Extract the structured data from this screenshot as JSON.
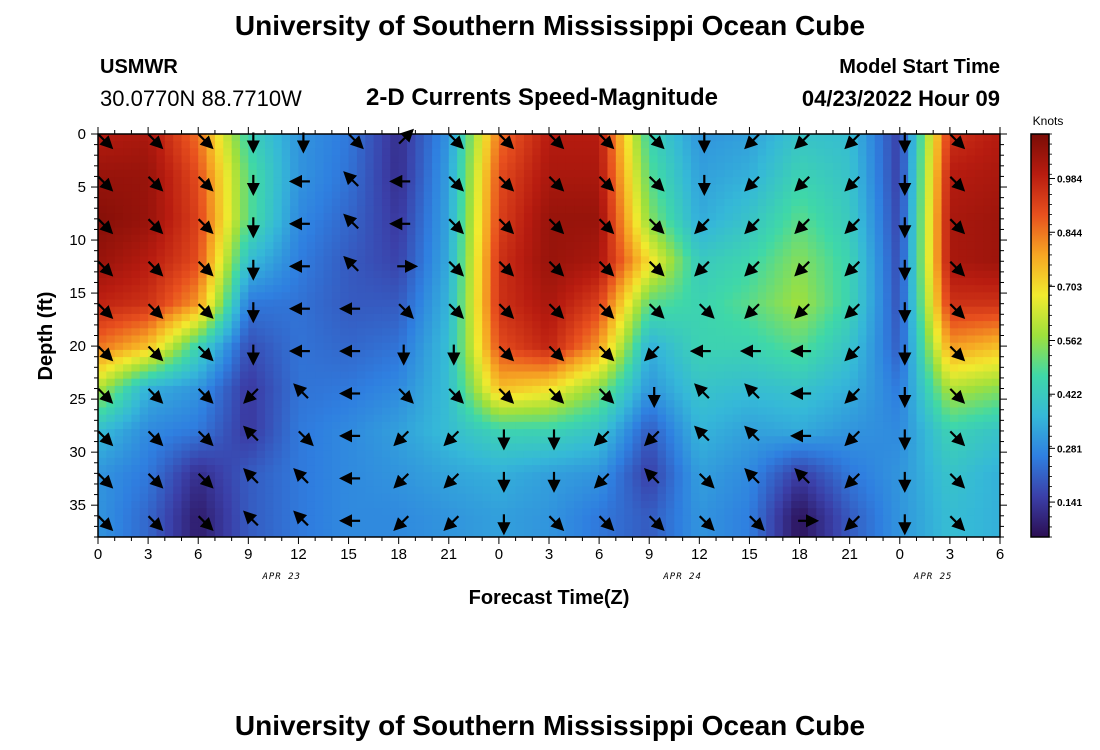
{
  "header": {
    "title": "University of Southern Mississippi Ocean Cube",
    "station": "USMWR",
    "coordinates": "30.0770N  88.7710W",
    "subtitle": "2-D Currents Speed-Magnitude",
    "model_start_label": "Model Start Time",
    "model_start_value": "04/23/2022 Hour 09"
  },
  "footer": {
    "title": "University of Southern Mississippi Ocean Cube"
  },
  "colors": {
    "colormap": [
      "#2b0e52",
      "#3b3fa8",
      "#2f7fe0",
      "#35b8d8",
      "#3fd8a8",
      "#9ee03c",
      "#f2ea2e",
      "#f6a623",
      "#e8501e",
      "#b81c10",
      "#7a0c06"
    ]
  },
  "chart_data": {
    "type": "heatmap",
    "title": "2-D Currents Speed-Magnitude",
    "xlabel": "Forecast Time(Z)",
    "ylabel": "Depth (ft)",
    "x_ticks": [
      "0",
      "3",
      "6",
      "9",
      "12",
      "15",
      "18",
      "21",
      "0",
      "3",
      "6",
      "9",
      "12",
      "15",
      "18",
      "21",
      "0",
      "3",
      "6"
    ],
    "date_labels": [
      {
        "text": "APR 23",
        "hour": 11
      },
      {
        "text": "APR 24",
        "hour": 35
      },
      {
        "text": "APR 25",
        "hour": 50
      }
    ],
    "y_ticks": [
      0,
      5,
      10,
      15,
      20,
      25,
      30,
      35
    ],
    "xlim": [
      0,
      54
    ],
    "ylim": [
      0,
      38
    ],
    "colorbar": {
      "label": "Knots",
      "ticks": [
        "0.984",
        "0.844",
        "0.703",
        "0.562",
        "0.422",
        "0.281",
        "0.141"
      ],
      "tick_values": [
        0.984,
        0.844,
        0.703,
        0.562,
        0.422,
        0.281,
        0.141
      ],
      "range": [
        0.05,
        1.1
      ]
    },
    "speed_grid": {
      "x_hours": [
        0,
        3,
        6,
        9,
        12,
        15,
        18,
        21,
        24,
        27,
        30,
        33,
        36,
        39,
        42,
        45,
        48,
        51,
        54
      ],
      "depths_ft": [
        0,
        4,
        8,
        12,
        16,
        20,
        24,
        28,
        32,
        36
      ],
      "values_knots": [
        [
          1.0,
          1.02,
          0.85,
          0.45,
          0.3,
          0.25,
          0.12,
          0.3,
          0.85,
          1.0,
          1.0,
          0.45,
          0.3,
          0.32,
          0.4,
          0.38,
          0.15,
          0.95,
          1.0
        ],
        [
          1.05,
          1.05,
          0.9,
          0.5,
          0.3,
          0.24,
          0.12,
          0.32,
          0.9,
          1.02,
          1.02,
          0.5,
          0.32,
          0.35,
          0.45,
          0.4,
          0.15,
          1.0,
          1.02
        ],
        [
          1.08,
          1.05,
          0.92,
          0.5,
          0.28,
          0.22,
          0.14,
          0.33,
          0.92,
          1.05,
          1.05,
          0.55,
          0.34,
          0.4,
          0.5,
          0.42,
          0.16,
          1.02,
          1.04
        ],
        [
          1.05,
          1.0,
          0.9,
          0.38,
          0.26,
          0.2,
          0.16,
          0.34,
          0.95,
          1.05,
          1.02,
          0.7,
          0.42,
          0.46,
          0.55,
          0.45,
          0.17,
          1.02,
          1.04
        ],
        [
          0.98,
          0.95,
          0.8,
          0.25,
          0.24,
          0.2,
          0.2,
          0.36,
          0.95,
          1.02,
          0.92,
          0.5,
          0.45,
          0.5,
          0.58,
          0.45,
          0.18,
          0.95,
          0.95
        ],
        [
          0.85,
          0.75,
          0.45,
          0.18,
          0.24,
          0.22,
          0.24,
          0.38,
          0.9,
          0.98,
          0.8,
          0.35,
          0.45,
          0.45,
          0.5,
          0.4,
          0.2,
          0.8,
          0.75
        ],
        [
          0.6,
          0.35,
          0.3,
          0.14,
          0.24,
          0.25,
          0.28,
          0.38,
          0.75,
          0.7,
          0.55,
          0.3,
          0.4,
          0.38,
          0.4,
          0.35,
          0.25,
          0.6,
          0.55
        ],
        [
          0.38,
          0.28,
          0.25,
          0.14,
          0.25,
          0.28,
          0.32,
          0.38,
          0.45,
          0.45,
          0.4,
          0.2,
          0.36,
          0.32,
          0.34,
          0.3,
          0.28,
          0.45,
          0.4
        ],
        [
          0.3,
          0.25,
          0.12,
          0.2,
          0.25,
          0.28,
          0.3,
          0.33,
          0.35,
          0.32,
          0.3,
          0.15,
          0.32,
          0.28,
          0.15,
          0.25,
          0.3,
          0.4,
          0.35
        ],
        [
          0.3,
          0.22,
          0.08,
          0.2,
          0.25,
          0.28,
          0.28,
          0.3,
          0.32,
          0.3,
          0.25,
          0.2,
          0.3,
          0.26,
          0.06,
          0.2,
          0.3,
          0.38,
          0.35
        ]
      ]
    },
    "current_directions": {
      "x_hours": [
        0,
        3,
        6,
        9,
        12,
        15,
        18,
        21,
        24,
        27,
        30,
        33,
        36,
        39,
        42,
        45,
        48,
        51
      ],
      "depths_ft": [
        0,
        4,
        8,
        12,
        16,
        20,
        24,
        28,
        32,
        36
      ],
      "toward_deg": [
        [
          135,
          135,
          135,
          180,
          180,
          135,
          45,
          135,
          135,
          135,
          135,
          135,
          180,
          225,
          225,
          225,
          180,
          135
        ],
        [
          135,
          135,
          135,
          180,
          270,
          315,
          270,
          135,
          135,
          135,
          135,
          135,
          180,
          225,
          225,
          225,
          180,
          135
        ],
        [
          135,
          135,
          135,
          180,
          270,
          315,
          270,
          135,
          135,
          135,
          135,
          135,
          225,
          225,
          225,
          225,
          180,
          135
        ],
        [
          135,
          135,
          135,
          180,
          270,
          315,
          90,
          135,
          135,
          135,
          135,
          135,
          225,
          225,
          225,
          225,
          180,
          135
        ],
        [
          135,
          135,
          135,
          180,
          270,
          270,
          135,
          135,
          135,
          135,
          135,
          135,
          135,
          225,
          225,
          225,
          180,
          135
        ],
        [
          135,
          135,
          135,
          180,
          270,
          270,
          180,
          180,
          135,
          135,
          135,
          225,
          270,
          270,
          270,
          225,
          180,
          135
        ],
        [
          135,
          135,
          135,
          225,
          315,
          270,
          135,
          135,
          135,
          135,
          135,
          180,
          315,
          315,
          270,
          225,
          180,
          135
        ],
        [
          135,
          135,
          135,
          315,
          135,
          270,
          225,
          225,
          180,
          180,
          225,
          225,
          315,
          315,
          270,
          225,
          180,
          135
        ],
        [
          135,
          135,
          135,
          315,
          315,
          270,
          225,
          225,
          180,
          180,
          225,
          315,
          135,
          315,
          315,
          225,
          180,
          135
        ],
        [
          135,
          135,
          135,
          315,
          315,
          270,
          225,
          225,
          180,
          135,
          135,
          135,
          135,
          135,
          90,
          225,
          180,
          135
        ]
      ]
    }
  }
}
